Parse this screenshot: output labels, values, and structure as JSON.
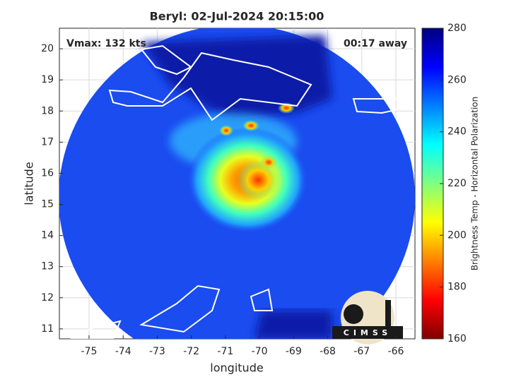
{
  "chart_data": {
    "type": "image-map",
    "title": "Beryl: 02-Jul-2024 20:15:00",
    "annotations": [
      "Vmax: 132 kts",
      "00:17 away"
    ],
    "x_label": "longitude",
    "y_label": "latitude",
    "xlim": [
      -75.87,
      -65.44
    ],
    "ylim": [
      10.68,
      20.66
    ],
    "xticks": [
      -75,
      -74,
      -73,
      -72,
      -71,
      -70,
      -69,
      -68,
      -67,
      -66
    ],
    "yticks": [
      11,
      12,
      13,
      14,
      15,
      16,
      17,
      18,
      19,
      20
    ],
    "grid": true,
    "colorbar": {
      "label": "Brightness Temp - Horizontal Polarization",
      "lim": [
        160,
        280
      ],
      "ticks": [
        160,
        180,
        200,
        220,
        240,
        260,
        280
      ]
    },
    "logo": "CIMSS"
  }
}
